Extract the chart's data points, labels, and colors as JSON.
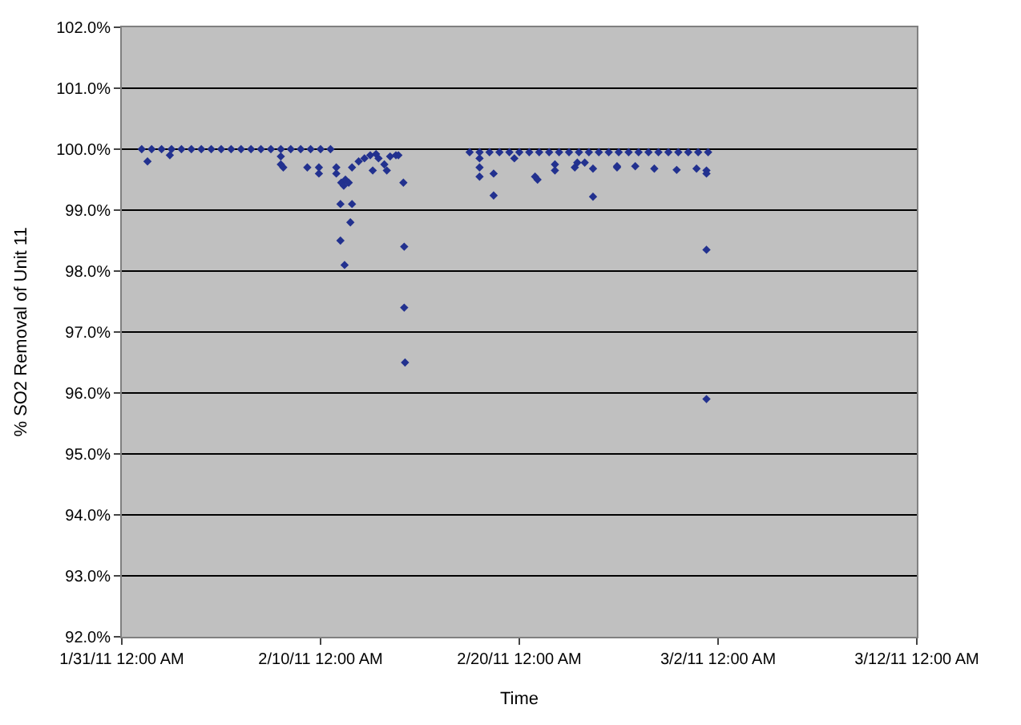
{
  "chart_data": {
    "type": "scatter",
    "xlabel": "Time",
    "ylabel": "% SO2 Removal of Unit 11",
    "xlim": [
      "2011-01-31T00:00",
      "2011-03-12T00:00"
    ],
    "xticks": [
      {
        "value": "2011-01-31T00:00",
        "label": "1/31/11 12:00 AM"
      },
      {
        "value": "2011-02-10T00:00",
        "label": "2/10/11 12:00 AM"
      },
      {
        "value": "2011-02-20T00:00",
        "label": "2/20/11 12:00 AM"
      },
      {
        "value": "2011-03-02T00:00",
        "label": "3/2/11 12:00 AM"
      },
      {
        "value": "2011-03-12T00:00",
        "label": "3/12/11 12:00 AM"
      }
    ],
    "ylim": [
      92,
      102
    ],
    "yticks": [
      {
        "value": 92,
        "label": "92.0%"
      },
      {
        "value": 93,
        "label": "93.0%"
      },
      {
        "value": 94,
        "label": "94.0%"
      },
      {
        "value": 95,
        "label": "95.0%"
      },
      {
        "value": 96,
        "label": "96.0%"
      },
      {
        "value": 97,
        "label": "97.0%"
      },
      {
        "value": 98,
        "label": "98.0%"
      },
      {
        "value": 99,
        "label": "99.0%"
      },
      {
        "value": 100,
        "label": "100.0%"
      },
      {
        "value": 101,
        "label": "101.0%"
      },
      {
        "value": 102,
        "label": "102.0%"
      }
    ],
    "grid": "y",
    "marker": "diamond",
    "series": [
      {
        "color": "#22318f",
        "x": [
          "2011-02-01T00:00",
          "2011-02-01T12:00",
          "2011-02-02T00:00",
          "2011-02-02T12:00",
          "2011-02-03T00:00",
          "2011-02-03T12:00",
          "2011-02-04T00:00",
          "2011-02-04T12:00",
          "2011-02-05T00:00",
          "2011-02-05T12:00",
          "2011-02-06T00:00",
          "2011-02-06T12:00",
          "2011-02-07T00:00",
          "2011-02-07T12:00",
          "2011-02-08T00:00",
          "2011-02-08T12:00",
          "2011-02-09T00:00",
          "2011-02-09T12:00",
          "2011-02-10T00:00",
          "2011-02-10T12:00",
          "2011-02-01T07:00",
          "2011-02-02T10:00",
          "2011-02-08T00:00",
          "2011-02-08T00:00",
          "2011-02-08T03:00",
          "2011-02-09T08:00",
          "2011-02-09T22:00",
          "2011-02-09T22:00",
          "2011-02-10T19:00",
          "2011-02-10T19:00",
          "2011-02-11T01:00",
          "2011-02-11T04:00",
          "2011-02-11T06:00",
          "2011-02-11T10:00",
          "2011-02-11T00:00",
          "2011-02-11T14:00",
          "2011-02-11T12:00",
          "2011-02-11T00:00",
          "2011-02-11T05:00",
          "2011-02-11T14:00",
          "2011-02-11T22:00",
          "2011-02-12T05:00",
          "2011-02-12T12:00",
          "2011-02-12T19:00",
          "2011-02-12T15:00",
          "2011-02-12T22:00",
          "2011-02-13T05:00",
          "2011-02-13T08:00",
          "2011-02-13T12:00",
          "2011-02-13T19:00",
          "2011-02-13T22:00",
          "2011-02-14T04:00",
          "2011-02-14T05:00",
          "2011-02-14T05:00",
          "2011-02-14T06:00",
          "2011-02-17T12:00",
          "2011-02-18T00:00",
          "2011-02-18T12:00",
          "2011-02-19T00:00",
          "2011-02-19T12:00",
          "2011-02-20T00:00",
          "2011-02-20T12:00",
          "2011-02-21T00:00",
          "2011-02-21T12:00",
          "2011-02-22T00:00",
          "2011-02-22T12:00",
          "2011-02-23T00:00",
          "2011-02-23T12:00",
          "2011-02-24T00:00",
          "2011-02-24T12:00",
          "2011-02-25T00:00",
          "2011-02-25T12:00",
          "2011-02-26T00:00",
          "2011-02-26T12:00",
          "2011-02-27T00:00",
          "2011-02-27T12:00",
          "2011-02-28T00:00",
          "2011-02-28T12:00",
          "2011-03-01T00:00",
          "2011-03-01T12:00",
          "2011-02-18T00:00",
          "2011-02-18T00:00",
          "2011-02-18T00:00",
          "2011-02-18T17:00",
          "2011-02-18T17:00",
          "2011-02-19T18:00",
          "2011-02-20T19:00",
          "2011-02-20T22:00",
          "2011-02-21T19:00",
          "2011-02-21T19:00",
          "2011-02-22T19:00",
          "2011-02-22T22:00",
          "2011-02-23T07:00",
          "2011-02-23T17:00",
          "2011-02-23T17:00",
          "2011-02-24T22:00",
          "2011-02-24T22:00",
          "2011-02-25T20:00",
          "2011-02-26T19:00",
          "2011-02-27T22:00",
          "2011-02-28T22:00",
          "2011-03-01T10:00",
          "2011-03-01T10:00",
          "2011-03-01T10:00",
          "2011-03-01T10:00"
        ],
        "values": [
          100.0,
          100.0,
          100.0,
          100.0,
          100.0,
          100.0,
          100.0,
          100.0,
          100.0,
          100.0,
          100.0,
          100.0,
          100.0,
          100.0,
          100.0,
          100.0,
          100.0,
          100.0,
          100.0,
          100.0,
          99.8,
          99.9,
          99.88,
          99.75,
          99.7,
          99.7,
          99.7,
          99.6,
          99.7,
          99.6,
          99.45,
          99.4,
          99.5,
          99.45,
          99.1,
          99.1,
          98.8,
          98.5,
          98.1,
          99.7,
          99.8,
          99.85,
          99.9,
          99.92,
          99.65,
          99.85,
          99.75,
          99.65,
          99.88,
          99.9,
          99.9,
          99.45,
          98.4,
          97.4,
          96.5,
          99.95,
          99.95,
          99.95,
          99.95,
          99.95,
          99.95,
          99.95,
          99.95,
          99.95,
          99.95,
          99.95,
          99.95,
          99.95,
          99.95,
          99.95,
          99.95,
          99.95,
          99.95,
          99.95,
          99.95,
          99.95,
          99.95,
          99.95,
          99.95,
          99.95,
          99.85,
          99.7,
          99.55,
          99.6,
          99.24,
          99.85,
          99.55,
          99.5,
          99.75,
          99.65,
          99.7,
          99.78,
          99.78,
          99.68,
          99.22,
          99.7,
          99.72,
          99.72,
          99.68,
          99.66,
          99.68,
          99.65,
          99.6,
          98.35,
          95.9
        ]
      }
    ]
  }
}
